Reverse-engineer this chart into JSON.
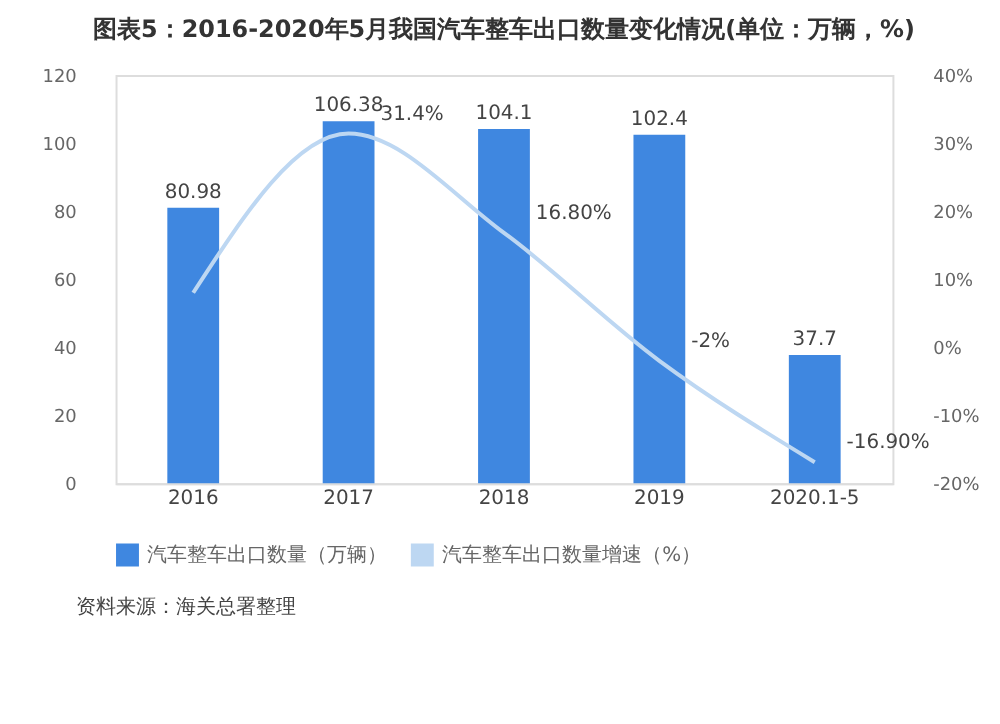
{
  "chart_data": {
    "type": "bar",
    "title": "图表5：2016-2020年5月我国汽车整车出口数量变化情况(单位：万辆，%)",
    "categories": [
      "2016",
      "2017",
      "2018",
      "2019",
      "2020.1-5"
    ],
    "series": [
      {
        "name": "汽车整车出口数量（万辆）",
        "type": "bar",
        "color": "#3f87e0",
        "values": [
          80.98,
          106.38,
          104.1,
          102.4,
          37.7
        ],
        "data_labels": true
      },
      {
        "name": "汽车整车出口数量增速（%）",
        "type": "line",
        "axis": "y2",
        "color": "#bdd7f2",
        "values": [
          8,
          31.4,
          16.8,
          -2,
          -16.9
        ],
        "value_labels": [
          null,
          "31.4%",
          "16.80%",
          "-2%",
          "-16.90%"
        ]
      }
    ],
    "ylim": [
      0,
      120
    ],
    "yticks": [
      0,
      20,
      40,
      60,
      80,
      100,
      120
    ],
    "y2lim": [
      -20,
      40
    ],
    "y2ticks": [
      {
        "value": -20,
        "label": "-20%"
      },
      {
        "value": -10,
        "label": "-10%"
      },
      {
        "value": 0,
        "label": "0%"
      },
      {
        "value": 10,
        "label": "10%"
      },
      {
        "value": 20,
        "label": "20%"
      },
      {
        "value": 30,
        "label": "30%"
      },
      {
        "value": 40,
        "label": "40%"
      }
    ],
    "grid": false,
    "legend": "bottom",
    "annotations": [
      "资料来源：海关总署整理"
    ]
  }
}
